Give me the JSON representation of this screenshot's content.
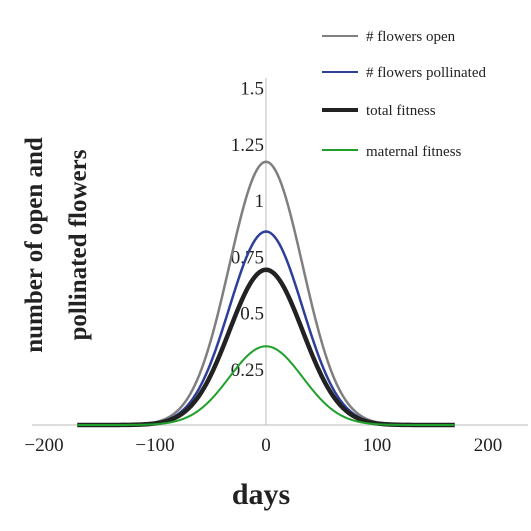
{
  "chart_data": {
    "type": "line",
    "title": "",
    "xlabel": "days",
    "ylabel_lines": [
      "number of open and",
      "pollinated flowers"
    ],
    "xlim": [
      -200,
      200
    ],
    "ylim": [
      0,
      1.5
    ],
    "x_ticks": [
      -200,
      -100,
      0,
      100,
      200
    ],
    "x_tick_labels": [
      "−200",
      "−100",
      "0",
      "100",
      "200"
    ],
    "y_ticks": [
      0.25,
      0.5,
      0.75,
      1,
      1.25,
      1.5
    ],
    "y_tick_labels": [
      "0.25",
      "0.5",
      "0.75",
      "1",
      "1.25",
      "1.5"
    ],
    "grid": false,
    "legend_position": "top-right",
    "x_range": [
      -170,
      170
    ],
    "curve_width_sd": 33,
    "series": [
      {
        "name": "# flowers open",
        "peak": 1.17,
        "color": "#7f7f7f"
      },
      {
        "name": "# flowers pollinated",
        "peak": 0.86,
        "color": "#2e3f9a"
      },
      {
        "name": "total fitness",
        "peak": 0.69,
        "color": "#222222"
      },
      {
        "name": "maternal fitness",
        "peak": 0.35,
        "color": "#1fa02a"
      }
    ]
  }
}
